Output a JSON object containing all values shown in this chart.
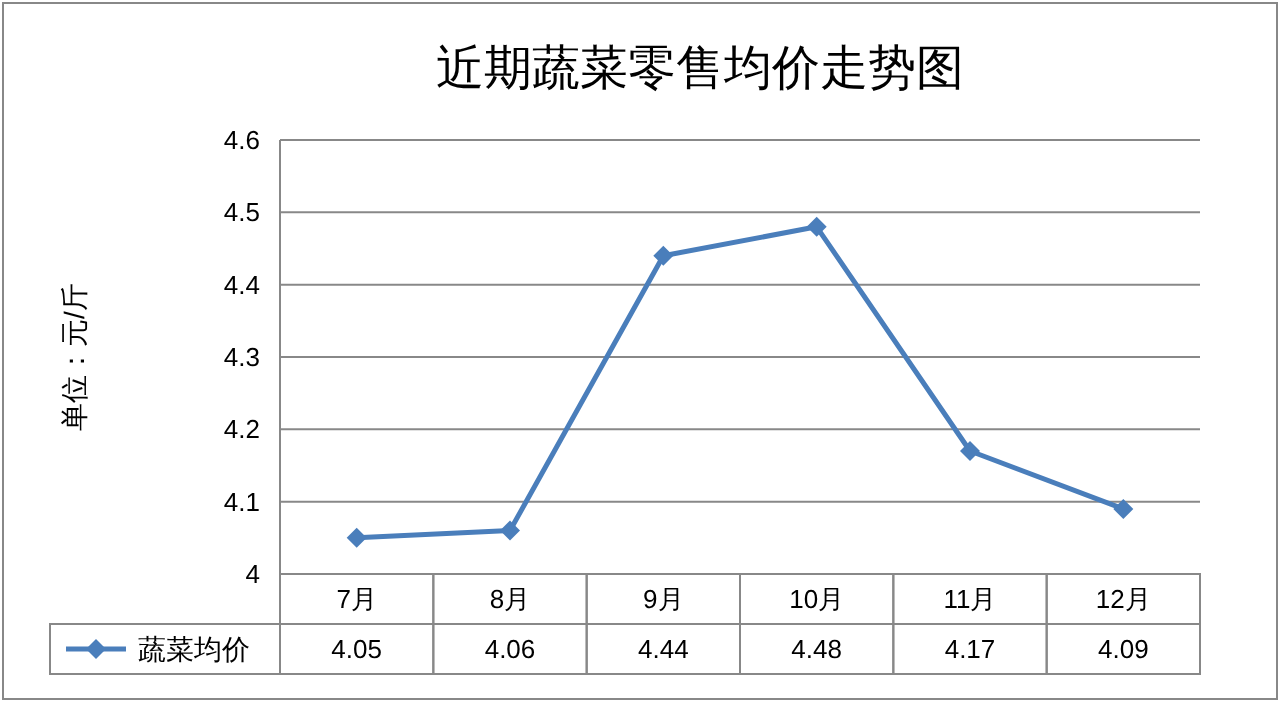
{
  "chart_data": {
    "type": "line",
    "title": "近期蔬菜零售均价走势图",
    "ylabel": "单位：元/斤",
    "categories": [
      "7月",
      "8月",
      "9月",
      "10月",
      "11月",
      "12月"
    ],
    "series": [
      {
        "name": "蔬菜均价",
        "color": "#4a7ebb",
        "values": [
          4.05,
          4.06,
          4.44,
          4.48,
          4.17,
          4.09
        ]
      }
    ],
    "ylim": [
      4,
      4.6
    ],
    "yticks": [
      4,
      4.1,
      4.2,
      4.3,
      4.4,
      4.5,
      4.6
    ],
    "grid": "y",
    "marker": "diamond",
    "data_labels": true,
    "legend": "bottom"
  }
}
